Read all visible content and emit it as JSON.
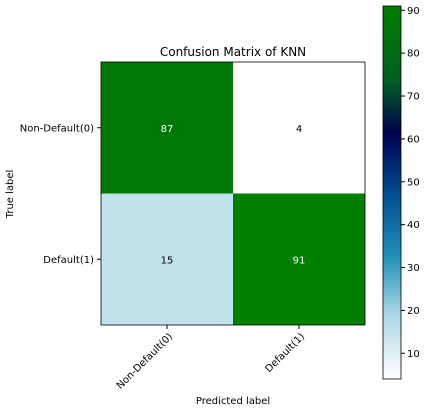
{
  "chart_data": {
    "type": "heatmap",
    "title": "Confusion Matrix of KNN",
    "xlabel": "Predicted label",
    "ylabel": "True label",
    "x_categories": [
      "Non-Default(0)",
      "Default(1)"
    ],
    "y_categories": [
      "Non-Default(0)",
      "Default(1)"
    ],
    "values": [
      [
        87,
        4
      ],
      [
        15,
        91
      ]
    ],
    "colormap": "ocean_r",
    "colorbar": {
      "min": 4,
      "max": 91,
      "ticks": [
        10,
        20,
        30,
        40,
        50,
        60,
        70,
        80,
        90
      ],
      "placement": "right"
    },
    "grid": false
  }
}
